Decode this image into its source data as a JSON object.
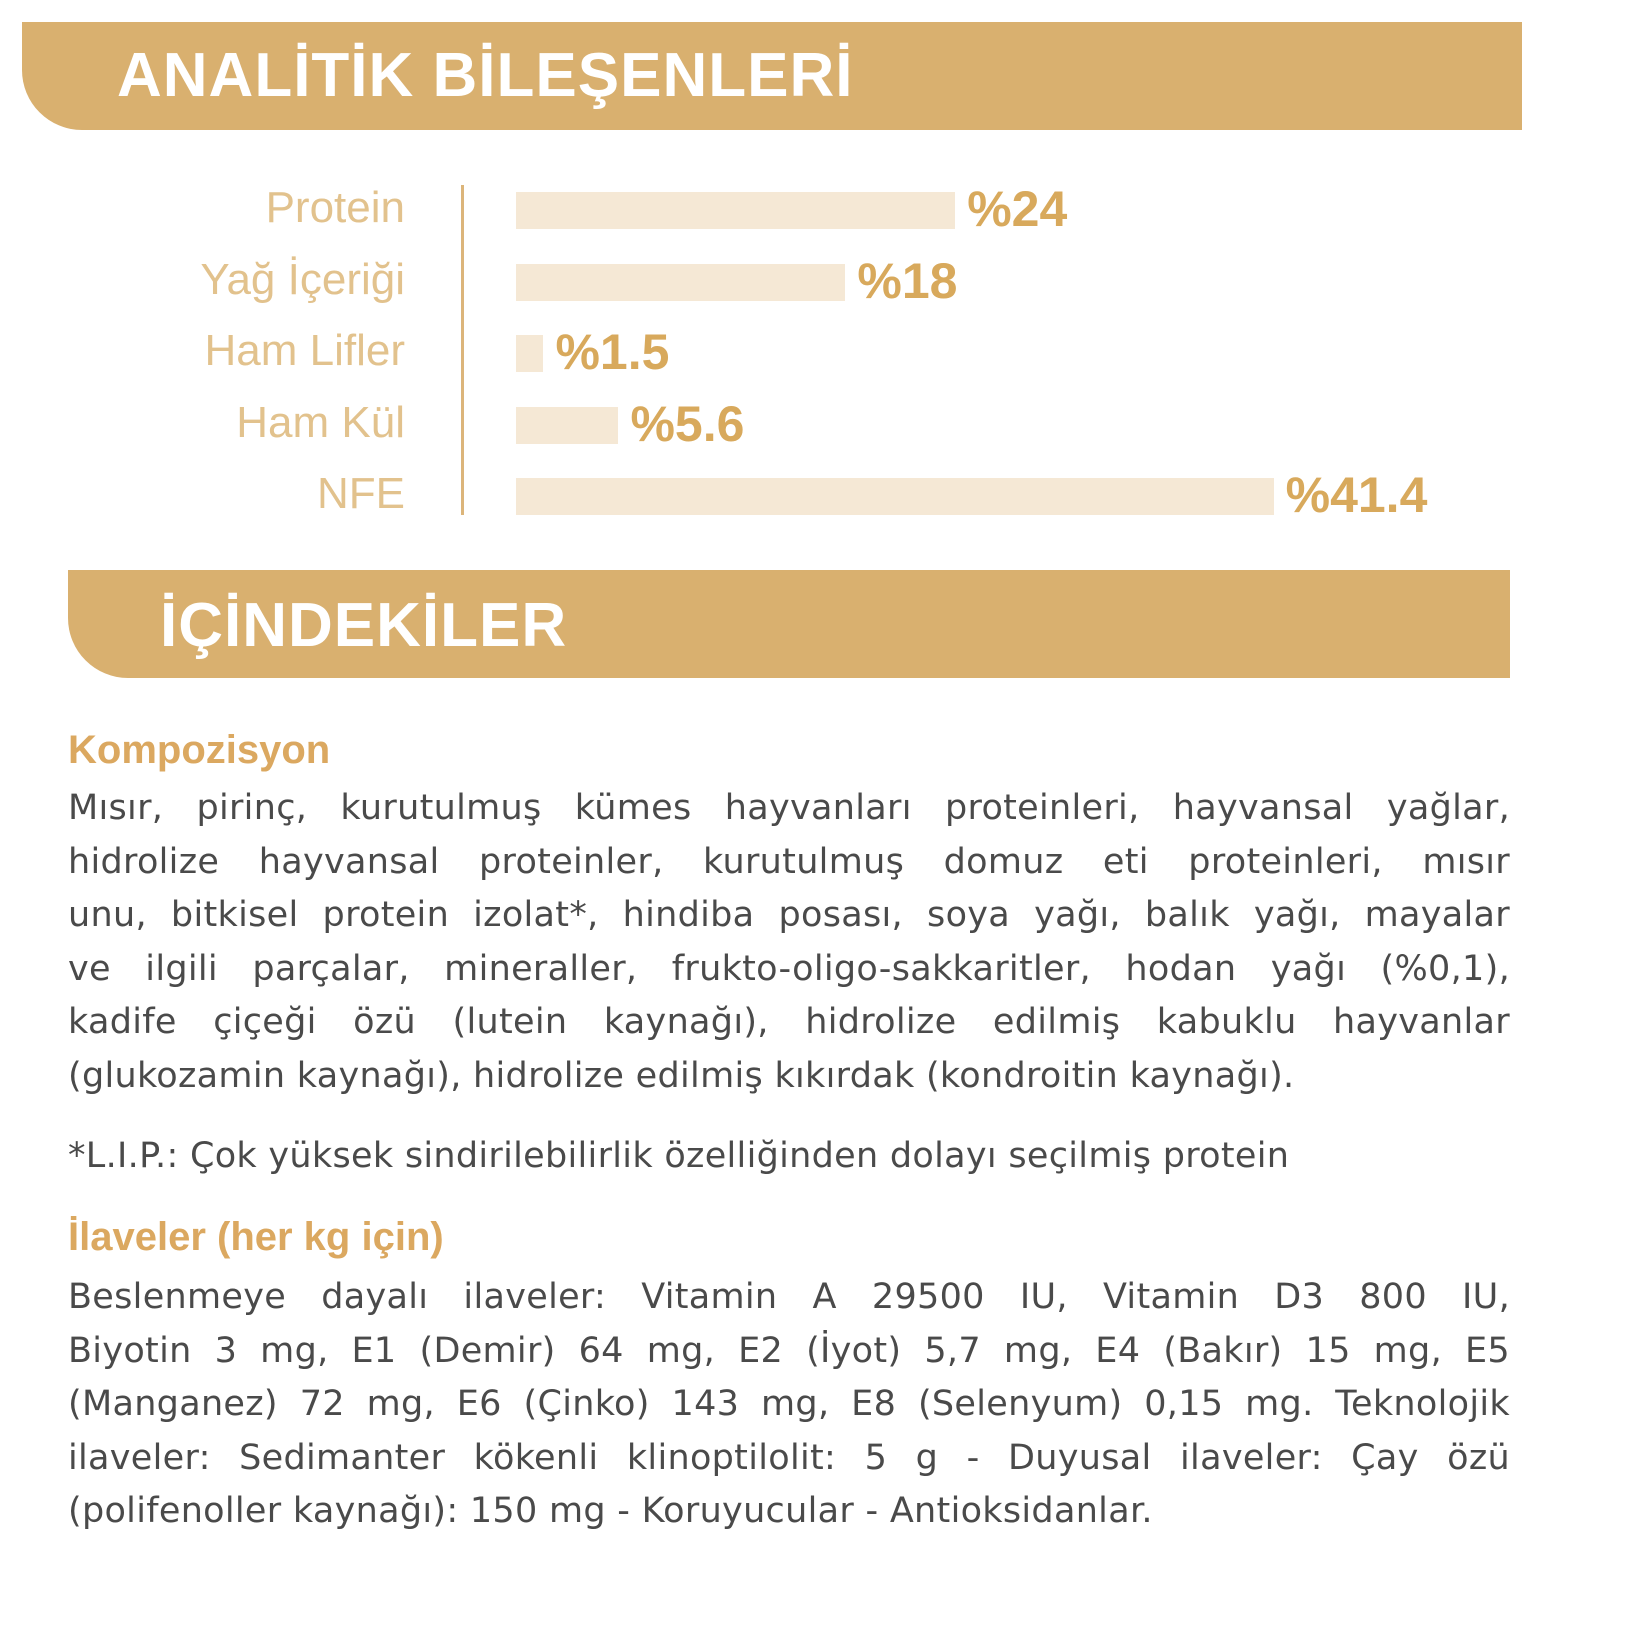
{
  "header1": "ANALİTİK BİLEŞENLERİ",
  "header2": "İÇİNDEKİLER",
  "colors": {
    "band": "#d9b06f",
    "bar": "#f5e8d5",
    "value": "#d8a95c",
    "label": "#e2c28d",
    "text": "#4a4a4a"
  },
  "chart_data": {
    "type": "bar",
    "orientation": "horizontal",
    "categories": [
      "Protein",
      "Yağ İçeriği",
      "Ham Lifler",
      "Ham Kül",
      "NFE"
    ],
    "values": [
      24,
      18,
      1.5,
      5.6,
      41.4
    ],
    "value_labels": [
      "%24",
      "%18",
      "%1.5",
      "%5.6",
      "%41.4"
    ],
    "title": "ANALİTİK BİLEŞENLERİ",
    "grid": false
  },
  "composition": {
    "title": "Kompozisyon",
    "lines": [
      "Mısır, pirinç, kurutulmuş kümes hayvanları proteinleri, hayvansal yağlar,",
      "hidrolize hayvansal proteinler, kurutulmuş domuz eti proteinleri, mısır",
      "unu, bitkisel protein izolat*, hindiba posası, soya yağı, balık yağı, mayalar",
      "ve ilgili parçalar, mineraller, frukto-oligo-sakkaritler, hodan yağı (%0,1),",
      "kadife çiçeği özü (lutein kaynağı), hidrolize edilmiş kabuklu hayvanlar",
      "(glukozamin kaynağı), hidrolize edilmiş kıkırdak (kondroitin kaynağı)."
    ],
    "footnote": "*L.I.P.: Çok yüksek sindirilebilirlik özelliğinden dolayı seçilmiş protein"
  },
  "additives": {
    "title": "İlaveler (her kg için)",
    "lines": [
      "Beslenmeye dayalı ilaveler: Vitamin A 29500 IU, Vitamin D3 800 IU,",
      "Biyotin 3 mg, E1 (Demir) 64 mg, E2 (İyot) 5,7 mg, E4 (Bakır) 15 mg, E5",
      "(Manganez) 72 mg, E6 (Çinko) 143 mg, E8 (Selenyum) 0,15 mg. Teknolojik",
      "ilaveler: Sedimanter kökenli klinoptilolit: 5 g - Duyusal ilaveler: Çay özü",
      "(polifenoller kaynağı): 150 mg - Koruyucular - Antioksidanlar."
    ]
  }
}
